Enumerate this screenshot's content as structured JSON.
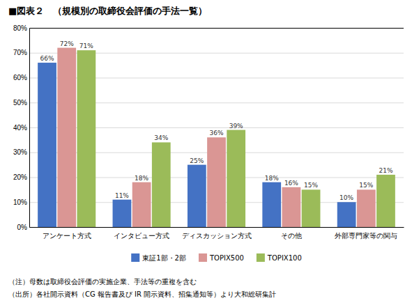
{
  "chart_data": {
    "type": "bar",
    "title": "■図表２　（規模別の取締役会評価の手法一覧）",
    "categories": [
      "アンケート方式",
      "インタビュー方式",
      "ディスカッション方式",
      "その他",
      "外部専門家等の関与"
    ],
    "series": [
      {
        "name": "東証1部・2部",
        "color": "#4472C4",
        "values": [
          66,
          11,
          25,
          18,
          10
        ],
        "value_labels": [
          "66%",
          "11%",
          "25%",
          "18%",
          "10%"
        ]
      },
      {
        "name": "TOPIX500",
        "color": "#DA9694",
        "values": [
          72,
          18,
          36,
          16,
          15
        ],
        "value_labels": [
          "72%",
          "18%",
          "36%",
          "16%",
          "15%"
        ]
      },
      {
        "name": "TOPIX100",
        "color": "#9BBB59",
        "values": [
          71,
          34,
          39,
          15,
          21
        ],
        "value_labels": [
          "71%",
          "34%",
          "39%",
          "15%",
          "21%"
        ]
      }
    ],
    "ylim": [
      0,
      80
    ],
    "yticks": [
      {
        "value": 0,
        "label": "0%"
      },
      {
        "value": 10,
        "label": "10%"
      },
      {
        "value": 20,
        "label": "20%"
      },
      {
        "value": 30,
        "label": "30%"
      },
      {
        "value": 40,
        "label": "40%"
      },
      {
        "value": 50,
        "label": "50%"
      },
      {
        "value": 60,
        "label": "60%"
      },
      {
        "value": 70,
        "label": "70%"
      },
      {
        "value": 80,
        "label": "80%"
      }
    ],
    "grid": true,
    "data_labels": true,
    "legend": "bottom",
    "annotations": [
      "（注）母数は取締役会評価の実施企業、手法等の重複を含む",
      "（出所）各社開示資料（CG 報告書及び IR 開示資料、招集通知等）より大和総研集計"
    ]
  }
}
